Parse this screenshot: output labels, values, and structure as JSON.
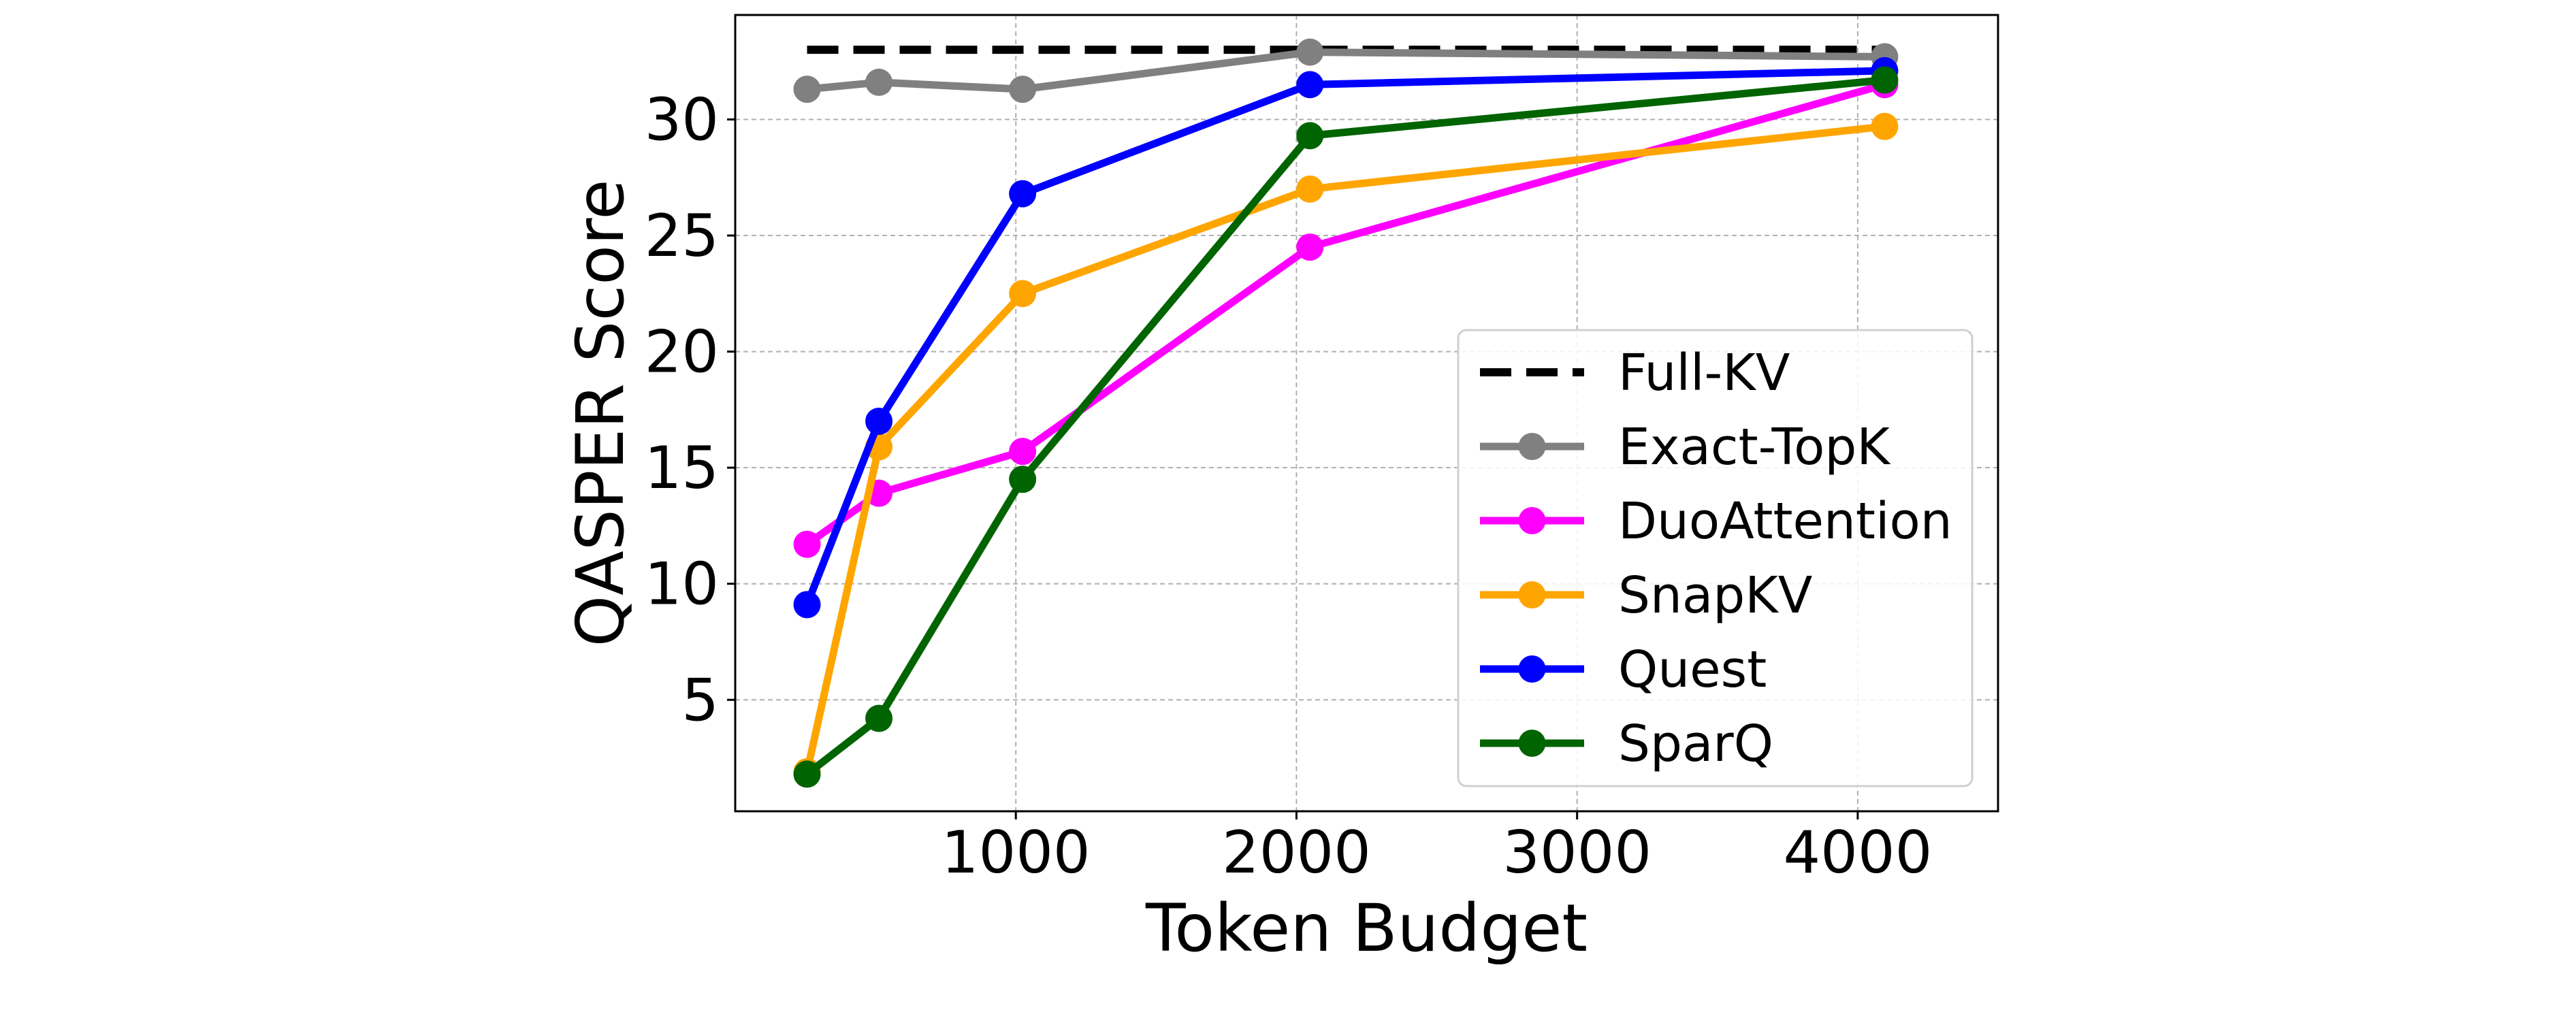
{
  "chart_data": {
    "type": "line",
    "xlabel": "Token Budget",
    "ylabel": "QASPER Score",
    "xlim": [
      0,
      4500
    ],
    "ylim": [
      0.2,
      34.5
    ],
    "xticks": [
      1000,
      2000,
      3000,
      4000
    ],
    "yticks": [
      5,
      10,
      15,
      20,
      25,
      30
    ],
    "grid": true,
    "legend_position": "lower-right",
    "reference_lines": [
      {
        "name": "Full-KV",
        "y": 33.0,
        "x_range": [
          256,
          4096
        ],
        "color": "#000000",
        "style": "dashed"
      }
    ],
    "series": [
      {
        "name": "Exact-TopK",
        "color": "#808080",
        "x": [
          256,
          512,
          1024,
          2048,
          4096
        ],
        "y": [
          31.3,
          31.6,
          31.3,
          32.9,
          32.7
        ]
      },
      {
        "name": "DuoAttention",
        "color": "#ff00ff",
        "x": [
          256,
          512,
          1024,
          2048,
          4096
        ],
        "y": [
          11.7,
          13.9,
          15.7,
          24.5,
          31.5
        ]
      },
      {
        "name": "SnapKV",
        "color": "#ffa500",
        "x": [
          256,
          512,
          1024,
          2048,
          4096
        ],
        "y": [
          1.9,
          15.9,
          22.5,
          27.0,
          29.7
        ]
      },
      {
        "name": "Quest",
        "color": "#0000ff",
        "x": [
          256,
          512,
          1024,
          2048,
          4096
        ],
        "y": [
          9.1,
          17.0,
          26.8,
          31.5,
          32.1
        ]
      },
      {
        "name": "SparQ",
        "color": "#006400",
        "x": [
          256,
          512,
          1024,
          2048,
          4096
        ],
        "y": [
          1.8,
          4.2,
          14.5,
          29.3,
          31.7
        ]
      }
    ]
  }
}
